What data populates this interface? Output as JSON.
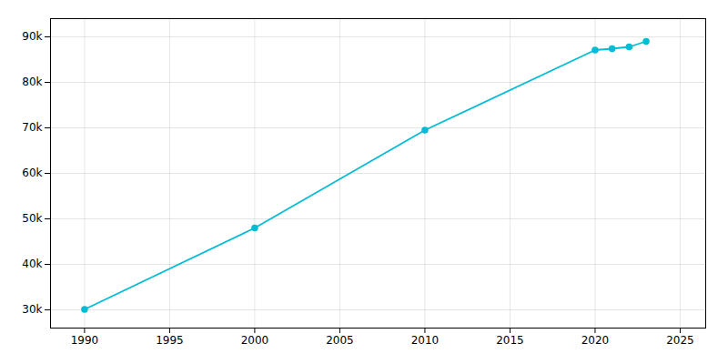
{
  "chart_data": {
    "type": "line",
    "x": [
      1990,
      2000,
      2010,
      2020,
      2021,
      2022,
      2023
    ],
    "values": [
      30100,
      48000,
      69500,
      87100,
      87400,
      87800,
      89000
    ],
    "color": "#00BCD4",
    "marker": "circle",
    "xlim": [
      1988,
      2026.5
    ],
    "ylim": [
      26000,
      94000
    ],
    "xticks": [
      1990,
      1995,
      2000,
      2005,
      2010,
      2015,
      2020,
      2025
    ],
    "yticks": [
      {
        "value": 30000,
        "label": "30k"
      },
      {
        "value": 40000,
        "label": "40k"
      },
      {
        "value": 50000,
        "label": "50k"
      },
      {
        "value": 60000,
        "label": "60k"
      },
      {
        "value": 70000,
        "label": "70k"
      },
      {
        "value": 80000,
        "label": "80k"
      },
      {
        "value": 90000,
        "label": "90k"
      }
    ],
    "grid": true
  }
}
